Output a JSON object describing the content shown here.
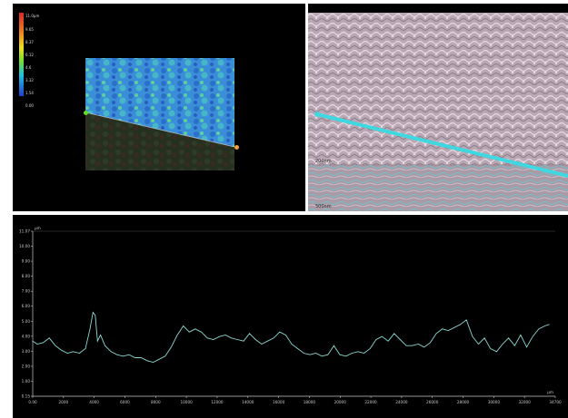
{
  "map": {
    "unit": "11.0µm",
    "scale_labels": [
      "9.65",
      "8.37",
      "6.12",
      "4.6",
      "3.32",
      "1.54",
      "0.00"
    ],
    "colors": {
      "scale_top": "#d62a2a",
      "scale_mid": "#f0e020",
      "scale_bottom": "#2040d0",
      "marker_left": "#60e020",
      "marker_right": "#f0a040"
    }
  },
  "micro": {
    "label_top": "200nm",
    "label_bottom": "500nm",
    "colors": {
      "line": "#40d8e0"
    }
  },
  "profile": {
    "y_unit": "µm",
    "x_unit": "µm",
    "y_ticks": [
      "11.07",
      "10.00",
      "9.00",
      "8.00",
      "7.00",
      "6.00",
      "5.00",
      "4.00",
      "3.00",
      "2.00",
      "1.00",
      "0.15"
    ],
    "x_ticks": [
      "0.00",
      "2000",
      "4000",
      "6000",
      "8000",
      "10000",
      "12000",
      "14000",
      "16000",
      "18000",
      "20000",
      "22000",
      "24000",
      "26000",
      "28000",
      "30000",
      "32000",
      "34700"
    ],
    "colors": {
      "line": "#8ad8d0",
      "axis": "#c8c8c8"
    }
  },
  "chart_data": {
    "type": "line",
    "xlabel": "µm",
    "ylabel": "µm",
    "xlim": [
      0,
      34700
    ],
    "ylim": [
      0.15,
      11.07
    ],
    "x": [
      0,
      300,
      700,
      1100,
      1500,
      1900,
      2300,
      2700,
      3100,
      3500,
      3800,
      4000,
      4150,
      4300,
      4500,
      4800,
      5200,
      5600,
      6000,
      6400,
      6800,
      7200,
      7600,
      8000,
      8400,
      8800,
      9200,
      9600,
      10000,
      10400,
      10800,
      11200,
      11600,
      12000,
      12400,
      12800,
      13200,
      13600,
      14000,
      14400,
      14800,
      15200,
      15600,
      16000,
      16400,
      16800,
      17200,
      17600,
      18000,
      18400,
      18800,
      19200,
      19600,
      20000,
      20400,
      20800,
      21200,
      21600,
      22000,
      22400,
      22800,
      23200,
      23600,
      24000,
      24400,
      24800,
      25200,
      25600,
      26000,
      26400,
      26800,
      27200,
      27600,
      28000,
      28400,
      28800,
      29200,
      29600,
      30000,
      30400,
      30800,
      31200,
      31600,
      32000,
      32400,
      32800,
      33200,
      33600,
      34000,
      34300
    ],
    "y": [
      3.8,
      3.6,
      3.7,
      4.0,
      3.5,
      3.2,
      3.0,
      3.1,
      3.0,
      3.3,
      4.6,
      5.7,
      5.5,
      3.8,
      4.2,
      3.5,
      3.1,
      2.9,
      2.8,
      2.9,
      2.7,
      2.7,
      2.5,
      2.4,
      2.6,
      2.8,
      3.4,
      4.2,
      4.8,
      4.4,
      4.6,
      4.4,
      4.0,
      3.9,
      4.1,
      4.2,
      4.0,
      3.9,
      3.8,
      4.3,
      3.9,
      3.6,
      3.8,
      4.0,
      4.4,
      4.2,
      3.6,
      3.3,
      3.0,
      2.9,
      3.0,
      2.8,
      2.9,
      3.5,
      2.9,
      2.8,
      3.0,
      3.1,
      3.0,
      3.3,
      3.9,
      4.1,
      3.8,
      4.3,
      3.9,
      3.5,
      3.5,
      3.6,
      3.4,
      3.7,
      4.3,
      4.6,
      4.5,
      4.7,
      4.9,
      5.2,
      4.1,
      3.6,
      4.0,
      3.3,
      3.1,
      3.6,
      4.0,
      3.5,
      4.2,
      3.4,
      4.1,
      4.6,
      4.8,
      4.9
    ]
  }
}
